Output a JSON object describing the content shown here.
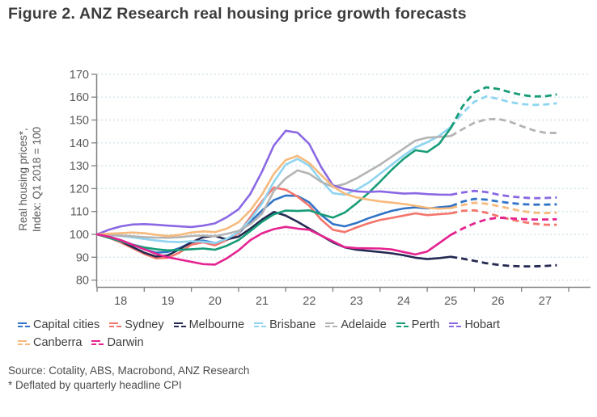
{
  "title": "Figure 2. ANZ Research real housing price growth forecasts",
  "source_line1": "Source: Cotality, ABS, Macrobond, ANZ Research",
  "source_line2": "* Deflated by quarterly headline CPI",
  "colors": {
    "gridline": "#ccdfe9",
    "axis": "#808080",
    "tick_text": "#595959",
    "title_text": "#3c3c3c"
  },
  "y_axis": {
    "title_line1": "Real housing prices*,",
    "title_line2": "Index: Q1 2018 = 100",
    "ticks": [
      80,
      90,
      100,
      110,
      120,
      130,
      140,
      150,
      160,
      170
    ]
  },
  "x_axis": {
    "tick_years": [
      2018,
      2019,
      2020,
      2021,
      2022,
      2023,
      2024,
      2025,
      2026,
      2027,
      2028
    ],
    "labels": [
      "18",
      "19",
      "20",
      "21",
      "22",
      "23",
      "24",
      "25",
      "26",
      "27"
    ]
  },
  "legend": {
    "rows": [
      [
        0,
        1,
        2,
        3,
        4,
        5,
        6
      ],
      [
        7,
        8
      ]
    ]
  },
  "chart_data": {
    "type": "line",
    "title": "ANZ Research real housing price growth forecasts",
    "ylabel": "Real housing prices*, Index: Q1 2018 = 100",
    "x_start": 2018.0,
    "x_step": 0.25,
    "forecast_start": 2025.5,
    "x_range": [
      2018,
      2028
    ],
    "ylim": [
      80,
      170
    ],
    "grid": "horizontal-dashed",
    "legend_position": "bottom",
    "note": "actual = solid quarterly line from Q1 2018; forecast = dashed from mid-2025",
    "series": [
      {
        "name": "Capital cities",
        "color": "#3173C6",
        "actual": [
          100,
          99,
          97.5,
          95.5,
          93.5,
          92,
          92.3,
          94,
          96.5,
          97.3,
          96.2,
          98,
          100.5,
          105.5,
          110.5,
          115,
          117,
          116.8,
          114,
          108.5,
          104.5,
          103.5,
          105,
          107,
          108.7,
          110.3,
          111.3,
          111.8,
          111.3,
          111.8,
          112.3
        ],
        "forecast": [
          112.3,
          114.3,
          115.5,
          115.2,
          114.4,
          113.7,
          113.2,
          113,
          113,
          113.1
        ]
      },
      {
        "name": "Sydney",
        "color": "#F4756C",
        "actual": [
          100,
          98.5,
          96.5,
          94,
          91.5,
          89.5,
          89.8,
          92,
          95.5,
          96.5,
          95.2,
          97.5,
          100.5,
          107.5,
          114.5,
          120.5,
          119.5,
          116.5,
          112.5,
          106.5,
          102,
          101,
          103,
          104.8,
          106.3,
          107.2,
          108.2,
          109.2,
          108.4,
          108.8,
          109.2
        ],
        "forecast": [
          109.2,
          110.3,
          110.5,
          109.5,
          108,
          106.6,
          105.5,
          104.7,
          104.2,
          104.2
        ]
      },
      {
        "name": "Melbourne",
        "color": "#252A52",
        "actual": [
          100,
          98.8,
          97,
          94.5,
          92,
          90.3,
          90.8,
          93.5,
          96.5,
          98.8,
          99.3,
          97.8,
          99,
          102.5,
          106.5,
          109.8,
          108.2,
          105.5,
          102.5,
          99.5,
          96.5,
          94.3,
          93.3,
          92.8,
          92.3,
          91.7,
          90.9,
          89.8,
          89.2,
          89.6,
          90.2
        ],
        "forecast": [
          90.2,
          89.4,
          88.4,
          87.4,
          86.7,
          86.2,
          86,
          86,
          86.2,
          86.5
        ]
      },
      {
        "name": "Brisbane",
        "color": "#8FD4F0",
        "actual": [
          100,
          99.7,
          99.3,
          98.7,
          98,
          97.3,
          96.8,
          96.6,
          97,
          96.8,
          96.2,
          98,
          101,
          106.5,
          113.5,
          123,
          130.5,
          133,
          130,
          123.5,
          118,
          117.3,
          119.5,
          122.5,
          126.5,
          130.5,
          134.5,
          138,
          140.3,
          143,
          147
        ],
        "forecast": [
          147,
          153,
          158,
          160.3,
          159.3,
          157.8,
          157,
          156.6,
          156.8,
          157.3
        ]
      },
      {
        "name": "Adelaide",
        "color": "#B4B4B4",
        "actual": [
          100,
          99.8,
          99.5,
          99.2,
          98.8,
          98.6,
          98.5,
          98.8,
          99.3,
          99.5,
          99.2,
          100.2,
          101.5,
          104.5,
          109,
          119,
          124.5,
          128,
          126.5,
          123,
          120.8,
          122,
          124.5,
          127.5,
          130.5,
          134,
          137.5,
          141,
          142.3,
          142.6,
          143
        ],
        "forecast": [
          143,
          146,
          148.8,
          150.3,
          150.5,
          149.3,
          147.3,
          145.5,
          144.4,
          144.3
        ]
      },
      {
        "name": "Perth",
        "color": "#179C77",
        "actual": [
          100,
          98.5,
          97,
          95.5,
          94.3,
          93.5,
          93,
          93.2,
          93.5,
          93.8,
          93.3,
          95,
          97.5,
          101.5,
          105.5,
          108.8,
          110.4,
          110.2,
          110.5,
          108.8,
          107.3,
          109.5,
          113.5,
          118,
          123,
          128.3,
          133,
          136.8,
          136,
          139.5,
          146.5
        ],
        "forecast": [
          146.5,
          156,
          162,
          164.3,
          163.6,
          162.2,
          161,
          160.3,
          160.4,
          161.2
        ]
      },
      {
        "name": "Hobart",
        "color": "#8A68E3",
        "actual": [
          100,
          102,
          103.5,
          104.3,
          104.5,
          104.2,
          103.8,
          103.5,
          103.2,
          103.8,
          104.8,
          107.5,
          111,
          117.7,
          127.5,
          138.9,
          145.3,
          144.5,
          139.5,
          129.5,
          121.5,
          119.8,
          118.8,
          118.5,
          118.8,
          118.3,
          117.8,
          118,
          117.6,
          117.4,
          117.3
        ],
        "forecast": [
          117.3,
          118.3,
          119,
          118.5,
          117.4,
          116.6,
          116.1,
          115.8,
          115.9,
          116.1
        ]
      },
      {
        "name": "Canberra",
        "color": "#F6BA7C",
        "actual": [
          100,
          100.3,
          100.5,
          100.8,
          100.5,
          99.8,
          99.3,
          99.8,
          100.8,
          101.3,
          101,
          102.5,
          105.3,
          110.5,
          117.5,
          126.5,
          132.5,
          134.3,
          131.2,
          126,
          121,
          117.8,
          116.2,
          115.2,
          114.4,
          113.9,
          113.3,
          112.5,
          111.6,
          111.2,
          111.5
        ],
        "forecast": [
          111.5,
          112.8,
          113.8,
          113.4,
          112.4,
          111.3,
          110.2,
          109.5,
          109.3,
          109.5
        ]
      },
      {
        "name": "Darwin",
        "color": "#E52390",
        "actual": [
          100,
          99,
          97.5,
          95.5,
          93.5,
          91.5,
          90,
          89,
          88,
          87,
          86.8,
          89.5,
          93,
          97.5,
          100.5,
          102.3,
          103.3,
          102.5,
          102,
          99.5,
          97,
          94.4,
          94,
          93.9,
          93.8,
          93.4,
          92.3,
          91.2,
          92.5,
          96.1,
          99.8
        ],
        "forecast": [
          99.8,
          102.5,
          104.8,
          106.5,
          107.3,
          107,
          106.7,
          106.5,
          106.5,
          106.6
        ]
      }
    ]
  }
}
